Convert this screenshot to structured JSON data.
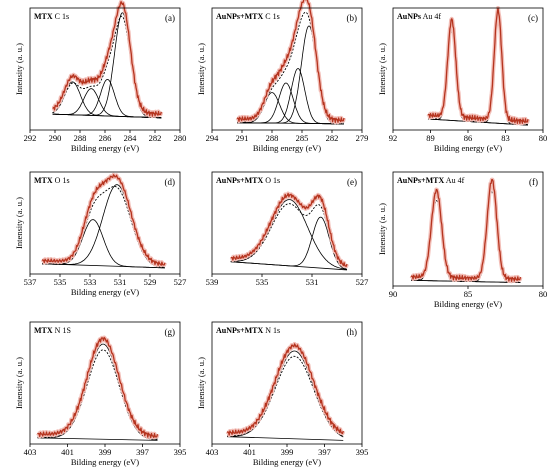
{
  "colors": {
    "measured": "#b5341f",
    "measured_halo": "#f2bdb6",
    "envelope": "#000000",
    "components": "#000000",
    "axis": "#000000"
  },
  "chart_data": [
    {
      "type": "line",
      "panel_letter": "(a)",
      "title_bold": "MTX",
      "title_rest": "C 1s",
      "xlabel": "Bilding energy (eV)",
      "ylabel": "Intensity (a. u.)",
      "xlim": [
        292,
        280
      ],
      "xticks": [
        292,
        290,
        288,
        286,
        284,
        282,
        280
      ],
      "data_range": [
        290.2,
        281.5
      ],
      "background": {
        "left": 0.13,
        "right": 0.1
      },
      "peaks": [
        {
          "center": 284.6,
          "height": 0.85,
          "fwhm": 1.5
        },
        {
          "center": 285.8,
          "height": 0.3,
          "fwhm": 1.3
        },
        {
          "center": 287.1,
          "height": 0.22,
          "fwhm": 1.4
        },
        {
          "center": 288.6,
          "height": 0.27,
          "fwhm": 1.5
        }
      ]
    },
    {
      "type": "line",
      "panel_letter": "(b)",
      "title_bold": "AuNPs+MTX",
      "title_rest": "C 1s",
      "xlabel": "Bilding energy (eV)",
      "ylabel": "Intensity (a. u.)",
      "xlim": [
        294,
        279
      ],
      "xticks": [
        294,
        291,
        288,
        285,
        282,
        279
      ],
      "data_range": [
        291.5,
        280.8
      ],
      "background": {
        "left": 0.06,
        "right": 0.05
      },
      "peaks": [
        {
          "center": 284.3,
          "height": 0.8,
          "fwhm": 1.8
        },
        {
          "center": 285.4,
          "height": 0.45,
          "fwhm": 1.6
        },
        {
          "center": 286.6,
          "height": 0.33,
          "fwhm": 1.7
        },
        {
          "center": 288.0,
          "height": 0.25,
          "fwhm": 1.8
        }
      ]
    },
    {
      "type": "line",
      "panel_letter": "(c)",
      "title_bold": "AuNPs",
      "title_rest": "Au 4f",
      "xlabel": "Bilding energy (eV)",
      "ylabel": "Intensity (a. u.)",
      "xlim": [
        92,
        80
      ],
      "xticks": [
        92,
        89,
        86,
        83,
        80
      ],
      "data_range": [
        89.2,
        81.2
      ],
      "background": {
        "left": 0.09,
        "right": 0.04
      },
      "peaks": [
        {
          "center": 87.3,
          "height": 0.78,
          "fwhm": 0.75
        },
        {
          "center": 83.6,
          "height": 0.88,
          "fwhm": 0.7
        }
      ]
    },
    {
      "type": "line",
      "panel_letter": "(d)",
      "title_bold": "MTX",
      "title_rest": "O 1s",
      "xlabel": "Bilding energy (eV)",
      "ylabel": "Intensity (a. u.)",
      "xlim": [
        537,
        527
      ],
      "xticks": [
        537,
        535,
        533,
        531,
        529,
        527
      ],
      "data_range": [
        536.2,
        528.0
      ],
      "background": {
        "left": 0.1,
        "right": 0.06
      },
      "peaks": [
        {
          "center": 531.2,
          "height": 0.8,
          "fwhm": 2.2
        },
        {
          "center": 532.8,
          "height": 0.45,
          "fwhm": 1.6
        }
      ]
    },
    {
      "type": "line",
      "panel_letter": "(e)",
      "title_bold": "AuNPs+MTX",
      "title_rest": "O 1s",
      "xlabel": "",
      "ylabel": "",
      "xlim": [
        539,
        527
      ],
      "xticks": [
        539,
        535,
        531,
        527
      ],
      "data_range": [
        537.5,
        528.2
      ],
      "background": {
        "left": 0.12,
        "right": 0.04
      },
      "peaks": [
        {
          "center": 532.8,
          "height": 0.65,
          "fwhm": 3.4
        },
        {
          "center": 530.3,
          "height": 0.5,
          "fwhm": 1.6
        }
      ]
    },
    {
      "type": "line",
      "panel_letter": "(f)",
      "title_bold": "AuNPs+MTX",
      "title_rest": "Au 4f",
      "xlabel": "Bilding energy (eV)",
      "ylabel": "Intensity (a. u.)",
      "xlim": [
        90,
        80
      ],
      "xticks": [
        90,
        85,
        80
      ],
      "data_range": [
        88.8,
        81.5
      ],
      "background": {
        "left": 0.05,
        "right": 0.03
      },
      "peaks": [
        {
          "center": 87.1,
          "height": 0.75,
          "fwhm": 0.8
        },
        {
          "center": 83.4,
          "height": 0.85,
          "fwhm": 0.75
        }
      ]
    },
    {
      "type": "line",
      "panel_letter": "(g)",
      "title_bold": "MTX",
      "title_rest": "N 1S",
      "xlabel": "Bilding energy (eV)",
      "ylabel": "Intensity (a. u.)",
      "xlim": [
        403,
        395
      ],
      "xticks": [
        403,
        401,
        399,
        397,
        395
      ],
      "data_range": [
        402.6,
        396.2
      ],
      "background": {
        "left": 0.05,
        "right": 0.03
      },
      "peaks": [
        {
          "center": 399.1,
          "height": 0.78,
          "fwhm": 2.0
        }
      ]
    },
    {
      "type": "line",
      "panel_letter": "(h)",
      "title_bold": "AuNPs+MTX",
      "title_rest": "N 1s",
      "xlabel": "Bilding energy (eV)",
      "ylabel": "Intensity (a. u.)",
      "xlim": [
        403,
        395
      ],
      "xticks": [
        403,
        401,
        399,
        397,
        395
      ],
      "data_range": [
        402.2,
        396.0
      ],
      "background": {
        "left": 0.06,
        "right": 0.03
      },
      "peaks": [
        {
          "center": 398.6,
          "height": 0.72,
          "fwhm": 2.4
        }
      ]
    }
  ]
}
